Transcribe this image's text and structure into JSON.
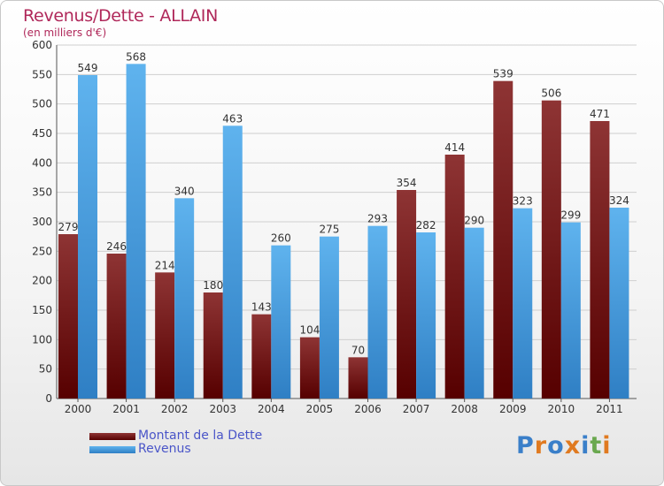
{
  "title": "Revenus/Dette - ALLAIN",
  "subtitle": "(en milliers d'€)",
  "logo_text": "Proxiti",
  "chart_data": {
    "type": "bar",
    "categories": [
      "2000",
      "2001",
      "2002",
      "2003",
      "2004",
      "2005",
      "2006",
      "2007",
      "2008",
      "2009",
      "2010",
      "2011"
    ],
    "series": [
      {
        "name": "Montant de la Dette",
        "color": "#7a1a1a",
        "values": [
          279,
          246,
          214,
          180,
          143,
          104,
          70,
          354,
          414,
          539,
          506,
          471
        ]
      },
      {
        "name": "Revenus",
        "color": "#4aa3e6",
        "values": [
          549,
          568,
          340,
          463,
          260,
          275,
          293,
          282,
          290,
          323,
          299,
          324
        ]
      }
    ],
    "yticks": [
      0,
      50,
      100,
      150,
      200,
      250,
      300,
      350,
      400,
      450,
      500,
      550,
      600
    ],
    "ylim": [
      0,
      600
    ],
    "grid": true,
    "legend_position": "bottom-left"
  }
}
